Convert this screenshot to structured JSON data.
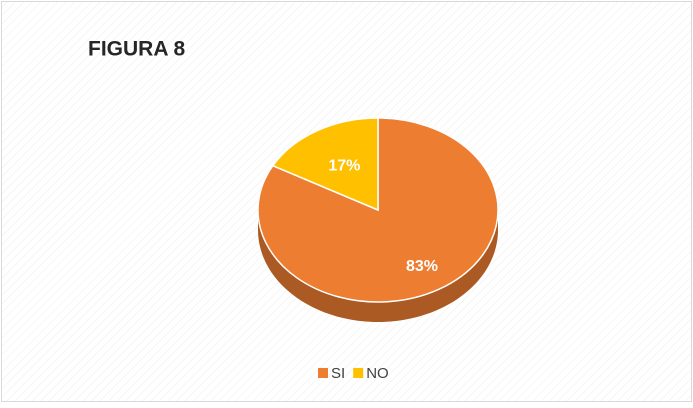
{
  "chart_data": {
    "type": "pie",
    "title": "FIGURA 8",
    "categories": [
      "SI",
      "NO"
    ],
    "values": [
      83,
      17
    ],
    "value_labels": [
      "83%",
      "17%"
    ],
    "colors": [
      "#ED7D31",
      "#FFC000"
    ],
    "legend": "bottom"
  }
}
